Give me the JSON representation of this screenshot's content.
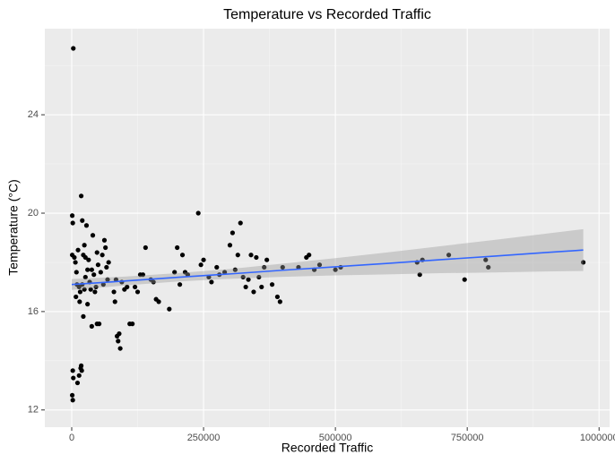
{
  "chart_data": {
    "type": "scatter",
    "title": "Temperature vs Recorded Traffic",
    "x_label": "Recorded Traffic",
    "y_label": "Temperature (°C)",
    "color": "#000000",
    "x": [
      3000,
      2000,
      3000,
      1000,
      2000,
      11000,
      14000,
      17000,
      18000,
      19000,
      1000,
      2000,
      1000,
      5000,
      7000,
      9000,
      12000,
      14000,
      16000,
      18000,
      20000,
      22000,
      24000,
      26000,
      28000,
      30000,
      32000,
      34000,
      36000,
      38000,
      40000,
      42000,
      44000,
      46000,
      48000,
      50000,
      52000,
      55000,
      58000,
      60000,
      62000,
      64000,
      66000,
      68000,
      70000,
      15000,
      22000,
      30000,
      38000,
      48000,
      20000,
      24000,
      10000,
      8000,
      26000,
      80000,
      82000,
      84000,
      86000,
      88000,
      90000,
      92000,
      95000,
      100000,
      105000,
      110000,
      115000,
      120000,
      125000,
      130000,
      135000,
      140000,
      150000,
      155000,
      160000,
      165000,
      185000,
      195000,
      200000,
      205000,
      210000,
      215000,
      220000,
      240000,
      245000,
      250000,
      260000,
      265000,
      275000,
      280000,
      290000,
      300000,
      305000,
      310000,
      315000,
      320000,
      325000,
      330000,
      335000,
      340000,
      345000,
      350000,
      355000,
      360000,
      365000,
      370000,
      380000,
      390000,
      395000,
      400000,
      430000,
      445000,
      450000,
      460000,
      470000,
      500000,
      510000,
      655000,
      660000,
      665000,
      715000,
      745000,
      785000,
      790000,
      970000
    ],
    "y": [
      26.7,
      13.6,
      13.3,
      12.6,
      12.4,
      13.1,
      13.4,
      13.7,
      13.8,
      13.6,
      19.9,
      19.6,
      18.3,
      18.2,
      18.0,
      17.6,
      18.5,
      17.0,
      16.8,
      20.7,
      19.7,
      18.3,
      18.7,
      17.4,
      19.5,
      17.7,
      18.1,
      17.2,
      16.9,
      17.7,
      19.1,
      17.5,
      16.8,
      17.0,
      18.4,
      17.9,
      15.5,
      17.6,
      18.3,
      17.1,
      18.9,
      18.6,
      17.8,
      17.3,
      18.0,
      16.4,
      15.8,
      16.3,
      15.4,
      15.5,
      17.1,
      16.9,
      17.1,
      16.6,
      18.2,
      16.8,
      16.4,
      17.3,
      15.0,
      14.8,
      15.1,
      14.5,
      17.2,
      16.9,
      17.0,
      15.5,
      15.5,
      17.0,
      16.8,
      17.5,
      17.5,
      18.6,
      17.3,
      17.2,
      16.5,
      16.4,
      16.1,
      17.6,
      18.6,
      17.1,
      18.3,
      17.6,
      17.5,
      20.0,
      17.9,
      18.1,
      17.4,
      17.2,
      17.8,
      17.5,
      17.6,
      18.7,
      19.2,
      17.7,
      18.3,
      19.6,
      17.4,
      17.0,
      17.3,
      18.3,
      16.8,
      18.2,
      17.4,
      17.0,
      17.8,
      18.1,
      17.1,
      16.6,
      16.4,
      17.8,
      17.8,
      18.2,
      18.3,
      17.7,
      17.9,
      17.7,
      17.8,
      18.0,
      17.5,
      18.1,
      18.3,
      17.3,
      18.1,
      17.8,
      18.0
    ],
    "fit": {
      "color": "#3366ff",
      "band_color": "#999999",
      "x": [
        0,
        100000,
        200000,
        300000,
        400000,
        500000,
        600000,
        700000,
        800000,
        900000,
        970000
      ],
      "y": [
        17.1,
        17.24,
        17.39,
        17.53,
        17.68,
        17.82,
        17.96,
        18.11,
        18.25,
        18.4,
        18.5
      ],
      "lower": [
        16.88,
        17.06,
        17.22,
        17.33,
        17.41,
        17.47,
        17.51,
        17.56,
        17.59,
        17.63,
        17.65
      ],
      "upper": [
        17.32,
        17.42,
        17.56,
        17.73,
        17.95,
        18.17,
        18.41,
        18.66,
        18.91,
        19.17,
        19.35
      ]
    },
    "xlim": [
      -51000,
      1020000
    ],
    "ylim": [
      11.3,
      27.5
    ],
    "xticks": [
      0,
      250000,
      500000,
      750000,
      1000000
    ],
    "yticks": [
      12,
      16,
      20,
      24
    ],
    "minor_xticks": [
      125000,
      375000,
      625000,
      875000
    ],
    "minor_yticks": [
      14,
      18,
      22,
      26
    ],
    "grid": true
  }
}
